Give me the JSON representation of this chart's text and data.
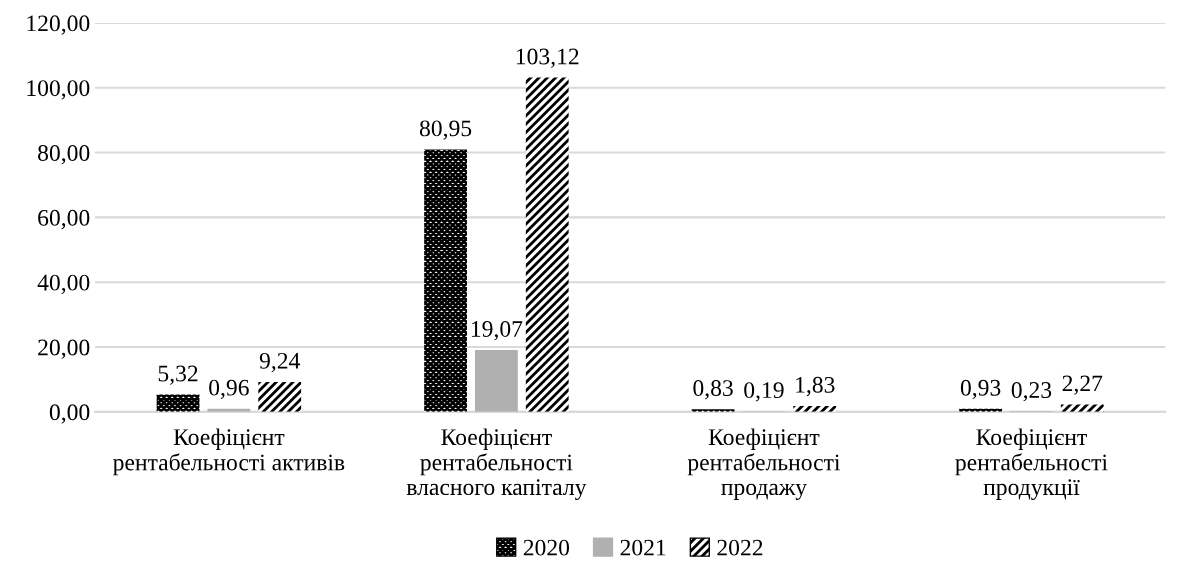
{
  "chart_data": {
    "type": "bar",
    "categories": [
      "Коефіцієнт\nрентабельності активів",
      "Коефіцієнт\nрентабельності\nвласного капіталу",
      "Коефіцієнт\nрентабельності\nпродажу",
      "Коефіцієнт\nрентабельності\nпродукції"
    ],
    "series": [
      {
        "name": "2020",
        "color": "#000000",
        "values": [
          5.32,
          80.95,
          0.83,
          0.93
        ],
        "value_labels": [
          "5,32",
          "80,95",
          "0,83",
          "0,93"
        ]
      },
      {
        "name": "2021",
        "color": "#b0b0b0",
        "values": [
          0.96,
          19.07,
          0.19,
          0.23
        ],
        "value_labels": [
          "0,96",
          "19,07",
          "0,19",
          "0,23"
        ]
      },
      {
        "name": "2022",
        "color": "#000000",
        "values": [
          9.24,
          103.12,
          1.83,
          2.27
        ],
        "value_labels": [
          "9,24",
          "103,12",
          "1,83",
          "2,27"
        ]
      }
    ],
    "ylim": [
      0,
      120
    ],
    "yticks": [
      {
        "value": 0,
        "label": "0,00"
      },
      {
        "value": 20,
        "label": "20,00"
      },
      {
        "value": 40,
        "label": "40,00"
      },
      {
        "value": 60,
        "label": "60,00"
      },
      {
        "value": 80,
        "label": "80,00"
      },
      {
        "value": 100,
        "label": "100,00"
      },
      {
        "value": 120,
        "label": "120,00"
      }
    ],
    "grid": "y",
    "legend": "bottom"
  }
}
